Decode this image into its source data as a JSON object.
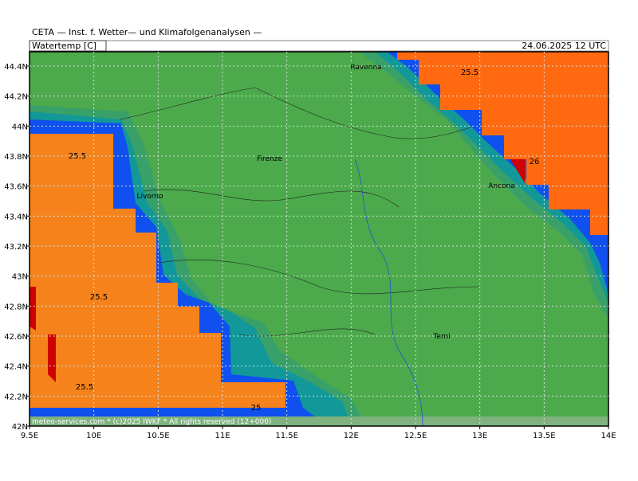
{
  "header": {
    "title": "CETA — Inst. f. Wetter— und Klimafolgenanalysen —",
    "variable": "Watertemp [C]",
    "date": "24.06.2025 12 UTC"
  },
  "map": {
    "xticks": [
      {
        "value": 9.5,
        "label": "9.5E"
      },
      {
        "value": 10,
        "label": "10E"
      },
      {
        "value": 10.5,
        "label": "10.5E"
      },
      {
        "value": 11,
        "label": "11E"
      },
      {
        "value": 11.5,
        "label": "11.5E"
      },
      {
        "value": 12,
        "label": "12E"
      },
      {
        "value": 12.5,
        "label": "12.5E"
      },
      {
        "value": 13,
        "label": "13E"
      },
      {
        "value": 13.5,
        "label": "13.5E"
      },
      {
        "value": 14,
        "label": "14E"
      }
    ],
    "yticks": [
      {
        "value": 42,
        "label": "42N"
      },
      {
        "value": 42.2,
        "label": "42.2N"
      },
      {
        "value": 42.4,
        "label": "42.4N"
      },
      {
        "value": 42.6,
        "label": "42.6N"
      },
      {
        "value": 42.8,
        "label": "42.8N"
      },
      {
        "value": 43,
        "label": "43N"
      },
      {
        "value": 43.2,
        "label": "43.2N"
      },
      {
        "value": 43.4,
        "label": "43.4N"
      },
      {
        "value": 43.6,
        "label": "43.6N"
      },
      {
        "value": 43.8,
        "label": "43.8N"
      },
      {
        "value": 44,
        "label": "44N"
      },
      {
        "value": 44.2,
        "label": "44.2N"
      },
      {
        "value": 44.4,
        "label": "44.4N"
      }
    ],
    "cities": [
      "Ravenna",
      "Firenze",
      "Livorno",
      "Ancona",
      "Terni"
    ],
    "contour_labels": [
      25.5,
      25.5,
      26,
      25.5,
      25.5,
      25
    ],
    "footer": "meteo-services.com * (c)2025 IWKF * All rights reserved (12+000)"
  }
}
